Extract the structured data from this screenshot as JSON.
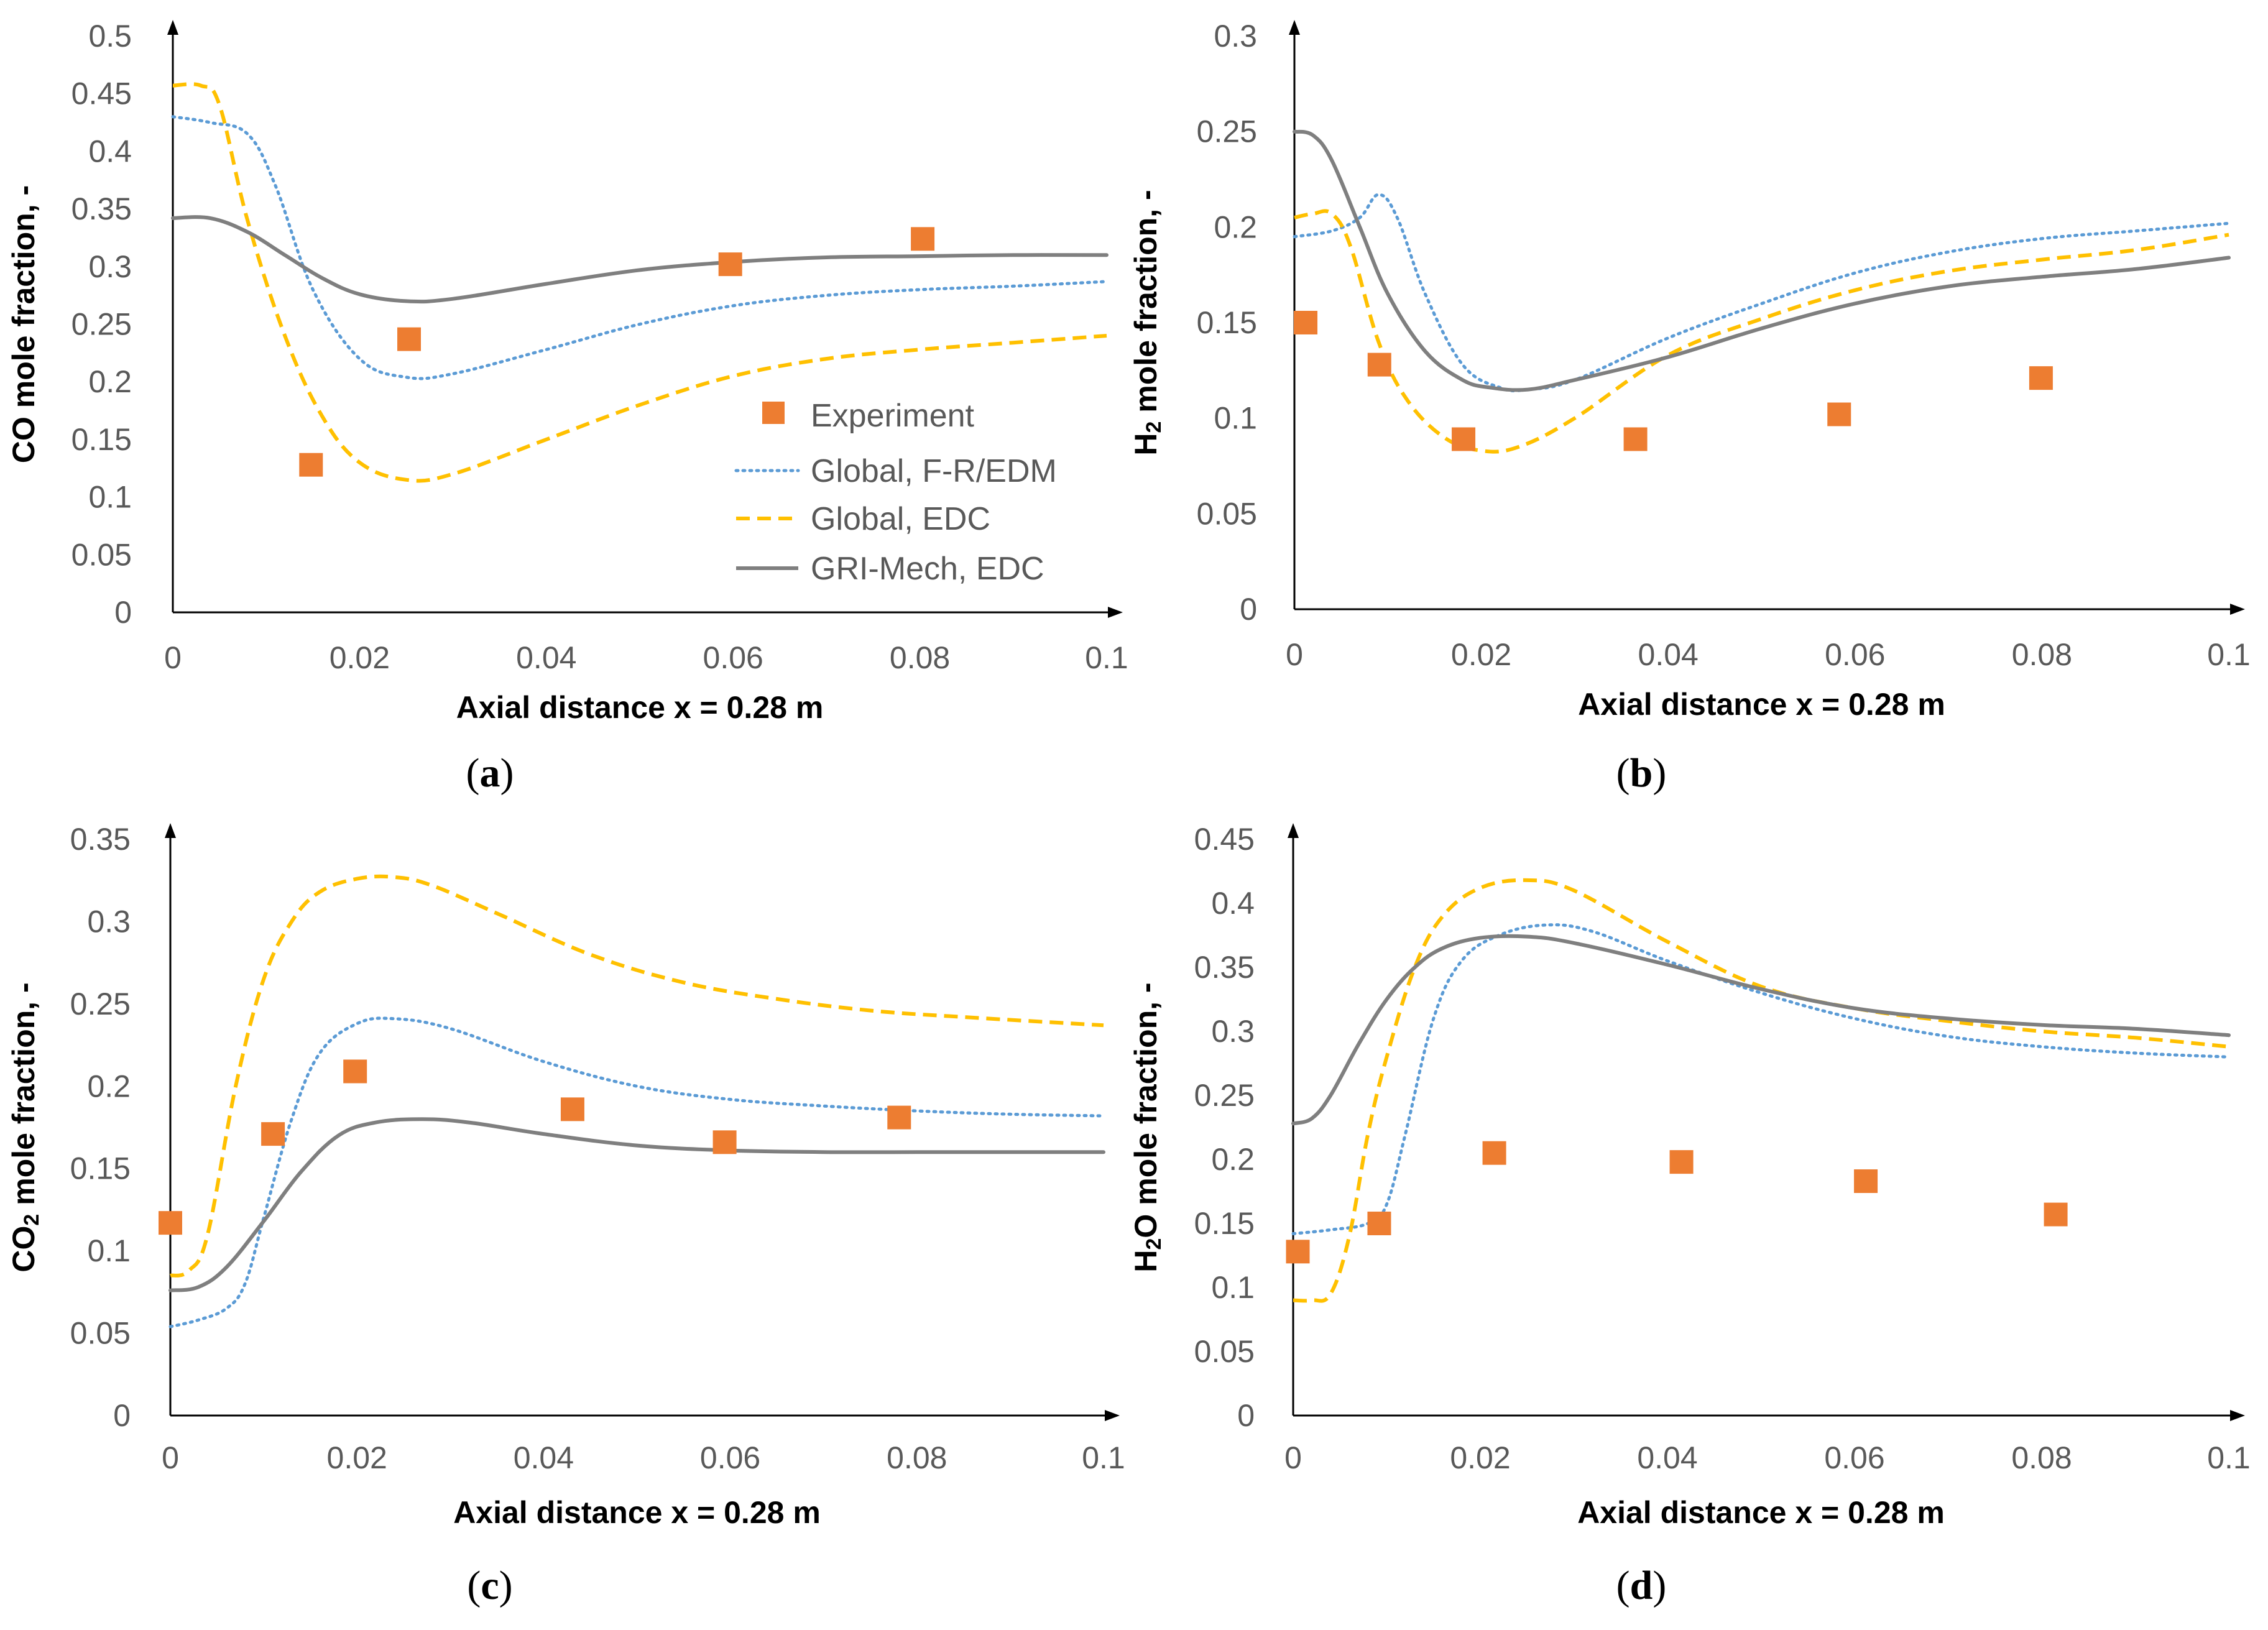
{
  "colors": {
    "experiment": "#ED7D31",
    "global_fr_edm": "#5B9BD5",
    "global_edc": "#FFC000",
    "gri_mech_edc": "#7F7F7F",
    "axis": "#000000",
    "tick_text": "#595959"
  },
  "legend": {
    "experiment": "Experiment",
    "global_fr_edm": "Global, F-R/EDM",
    "global_edc": "Global, EDC",
    "gri_mech_edc": "GRI-Mech, EDC"
  },
  "chart_data": [
    {
      "type": "line",
      "panel": "(a)",
      "panel_letter": "a",
      "xlabel": "Axial distance x = 0.28 m",
      "ylabel": "CO mole fraction, -",
      "xlim": [
        0,
        0.1
      ],
      "ylim": [
        0,
        0.5
      ],
      "xticks": [
        0,
        0.02,
        0.04,
        0.06,
        0.08,
        0.1
      ],
      "xtick_labels": [
        "0",
        "0.02",
        "0.04",
        "0.06",
        "0.08",
        "0.1"
      ],
      "yticks": [
        0,
        0.05,
        0.1,
        0.15,
        0.2,
        0.25,
        0.3,
        0.35,
        0.4,
        0.45,
        0.5
      ],
      "ytick_labels": [
        "0",
        "0.05",
        "0.1",
        "0.15",
        "0.2",
        "0.25",
        "0.3",
        "0.35",
        "0.4",
        "0.45",
        "0.5"
      ],
      "series": [
        {
          "name": "Experiment",
          "kind": "scatter",
          "x": [
            0.0148,
            0.0253,
            0.0597,
            0.0803
          ],
          "y": [
            0.128,
            0.237,
            0.302,
            0.324
          ]
        },
        {
          "name": "Global, F-R/EDM",
          "kind": "line",
          "x": [
            0,
            0.004,
            0.008,
            0.011,
            0.015,
            0.02,
            0.025,
            0.03,
            0.04,
            0.05,
            0.06,
            0.07,
            0.08,
            0.09,
            0.1
          ],
          "y": [
            0.43,
            0.425,
            0.415,
            0.37,
            0.28,
            0.22,
            0.204,
            0.207,
            0.228,
            0.25,
            0.266,
            0.275,
            0.28,
            0.283,
            0.287
          ]
        },
        {
          "name": "Global, EDC",
          "kind": "line",
          "x": [
            0,
            0.003,
            0.005,
            0.008,
            0.012,
            0.016,
            0.02,
            0.025,
            0.03,
            0.04,
            0.05,
            0.06,
            0.07,
            0.08,
            0.09,
            0.1
          ],
          "y": [
            0.457,
            0.457,
            0.44,
            0.34,
            0.24,
            0.17,
            0.13,
            0.115,
            0.12,
            0.15,
            0.18,
            0.205,
            0.22,
            0.228,
            0.234,
            0.24
          ]
        },
        {
          "name": "GRI-Mech, EDC",
          "kind": "line",
          "x": [
            0,
            0.004,
            0.008,
            0.012,
            0.016,
            0.02,
            0.025,
            0.03,
            0.04,
            0.05,
            0.06,
            0.07,
            0.08,
            0.09,
            0.1
          ],
          "y": [
            0.342,
            0.342,
            0.33,
            0.31,
            0.29,
            0.276,
            0.27,
            0.272,
            0.285,
            0.297,
            0.304,
            0.308,
            0.309,
            0.31,
            0.31
          ]
        }
      ],
      "legend_position": "center-right"
    },
    {
      "type": "line",
      "panel": "(b)",
      "panel_letter": "b",
      "xlabel": "Axial distance x = 0.28 m",
      "ylabel": "H2 mole fraction, -",
      "ylabel_parts": [
        "H",
        "2",
        " mole fraction, -"
      ],
      "xlim": [
        0,
        0.1
      ],
      "ylim": [
        0,
        0.3
      ],
      "xticks": [
        0,
        0.02,
        0.04,
        0.06,
        0.08,
        0.1
      ],
      "xtick_labels": [
        "0",
        "0.02",
        "0.04",
        "0.06",
        "0.08",
        "0.1"
      ],
      "yticks": [
        0,
        0.05,
        0.1,
        0.15,
        0.2,
        0.25,
        0.3
      ],
      "ytick_labels": [
        "0",
        "0.05",
        "0.1",
        "0.15",
        "0.2",
        "0.25",
        "0.3"
      ],
      "series": [
        {
          "name": "Experiment",
          "kind": "scatter",
          "x": [
            0.0012,
            0.0091,
            0.0181,
            0.0365,
            0.0583,
            0.0799
          ],
          "y": [
            0.15,
            0.128,
            0.089,
            0.089,
            0.102,
            0.121
          ]
        },
        {
          "name": "Global, F-R/EDM",
          "kind": "line",
          "x": [
            0,
            0.004,
            0.007,
            0.009,
            0.011,
            0.014,
            0.018,
            0.022,
            0.025,
            0.03,
            0.04,
            0.05,
            0.06,
            0.07,
            0.08,
            0.09,
            0.1
          ],
          "y": [
            0.195,
            0.198,
            0.205,
            0.217,
            0.205,
            0.165,
            0.128,
            0.116,
            0.115,
            0.12,
            0.142,
            0.16,
            0.176,
            0.187,
            0.194,
            0.198,
            0.202
          ]
        },
        {
          "name": "Global, EDC",
          "kind": "line",
          "x": [
            0,
            0.002,
            0.004,
            0.006,
            0.009,
            0.012,
            0.016,
            0.02,
            0.024,
            0.03,
            0.04,
            0.05,
            0.06,
            0.07,
            0.08,
            0.09,
            0.1
          ],
          "y": [
            0.205,
            0.207,
            0.207,
            0.19,
            0.14,
            0.11,
            0.09,
            0.083,
            0.085,
            0.1,
            0.133,
            0.152,
            0.167,
            0.177,
            0.183,
            0.188,
            0.196
          ]
        },
        {
          "name": "GRI-Mech, EDC",
          "kind": "line",
          "x": [
            0,
            0.002,
            0.004,
            0.007,
            0.01,
            0.014,
            0.018,
            0.021,
            0.025,
            0.03,
            0.04,
            0.05,
            0.06,
            0.07,
            0.08,
            0.09,
            0.1
          ],
          "y": [
            0.25,
            0.248,
            0.235,
            0.2,
            0.165,
            0.135,
            0.12,
            0.116,
            0.115,
            0.12,
            0.132,
            0.147,
            0.16,
            0.169,
            0.174,
            0.178,
            0.184
          ]
        }
      ]
    },
    {
      "type": "line",
      "panel": "(c)",
      "panel_letter": "c",
      "xlabel": "Axial distance x = 0.28 m",
      "ylabel": "CO2 mole fraction, -",
      "ylabel_parts": [
        "CO",
        "2",
        " mole fraction, -"
      ],
      "xlim": [
        0,
        0.1
      ],
      "ylim": [
        0,
        0.35
      ],
      "xticks": [
        0,
        0.02,
        0.04,
        0.06,
        0.08,
        0.1
      ],
      "xtick_labels": [
        "0",
        "0.02",
        "0.04",
        "0.06",
        "0.08",
        "0.1"
      ],
      "yticks": [
        0,
        0.05,
        0.1,
        0.15,
        0.2,
        0.25,
        0.3,
        0.35
      ],
      "ytick_labels": [
        "0",
        "0.05",
        "0.1",
        "0.15",
        "0.2",
        "0.25",
        "0.3",
        "0.35"
      ],
      "series": [
        {
          "name": "Experiment",
          "kind": "scatter",
          "x": [
            0.0,
            0.011,
            0.0198,
            0.0431,
            0.0594,
            0.0781
          ],
          "y": [
            0.117,
            0.171,
            0.209,
            0.186,
            0.166,
            0.181
          ]
        },
        {
          "name": "Global, F-R/EDM",
          "kind": "line",
          "x": [
            0,
            0.003,
            0.006,
            0.008,
            0.01,
            0.013,
            0.016,
            0.02,
            0.024,
            0.03,
            0.04,
            0.05,
            0.06,
            0.07,
            0.08,
            0.09,
            0.1
          ],
          "y": [
            0.054,
            0.058,
            0.065,
            0.08,
            0.12,
            0.18,
            0.22,
            0.238,
            0.241,
            0.235,
            0.215,
            0.2,
            0.192,
            0.188,
            0.185,
            0.183,
            0.182
          ]
        },
        {
          "name": "Global, EDC",
          "kind": "line",
          "x": [
            0,
            0.002,
            0.004,
            0.007,
            0.01,
            0.013,
            0.016,
            0.02,
            0.024,
            0.028,
            0.035,
            0.045,
            0.055,
            0.065,
            0.075,
            0.085,
            0.1
          ],
          "y": [
            0.085,
            0.088,
            0.11,
            0.2,
            0.265,
            0.3,
            0.318,
            0.326,
            0.327,
            0.322,
            0.305,
            0.28,
            0.263,
            0.253,
            0.246,
            0.242,
            0.237
          ]
        },
        {
          "name": "GRI-Mech, EDC",
          "kind": "line",
          "x": [
            0,
            0.003,
            0.006,
            0.01,
            0.014,
            0.018,
            0.022,
            0.027,
            0.032,
            0.04,
            0.05,
            0.06,
            0.07,
            0.08,
            0.09,
            0.1
          ],
          "y": [
            0.076,
            0.078,
            0.09,
            0.118,
            0.148,
            0.17,
            0.178,
            0.18,
            0.178,
            0.171,
            0.164,
            0.161,
            0.16,
            0.16,
            0.16,
            0.16
          ]
        }
      ]
    },
    {
      "type": "line",
      "panel": "(d)",
      "panel_letter": "d",
      "xlabel": "Axial distance x = 0.28 m",
      "ylabel": "H2O mole fraction, -",
      "ylabel_parts": [
        "H",
        "2",
        "O mole fraction, -"
      ],
      "xlim": [
        0,
        0.1
      ],
      "ylim": [
        0,
        0.45
      ],
      "xticks": [
        0,
        0.02,
        0.04,
        0.06,
        0.08,
        0.1
      ],
      "xtick_labels": [
        "0",
        "0.02",
        "0.04",
        "0.06",
        "0.08",
        "0.1"
      ],
      "yticks": [
        0,
        0.05,
        0.1,
        0.15,
        0.2,
        0.25,
        0.3,
        0.35,
        0.4,
        0.45
      ],
      "ytick_labels": [
        "0",
        "0.05",
        "0.1",
        "0.15",
        "0.2",
        "0.25",
        "0.3",
        "0.35",
        "0.4",
        "0.45"
      ],
      "series": [
        {
          "name": "Experiment",
          "kind": "scatter",
          "x": [
            0.0005,
            0.0092,
            0.0215,
            0.0415,
            0.0612,
            0.0815
          ],
          "y": [
            0.128,
            0.15,
            0.205,
            0.198,
            0.183,
            0.157
          ]
        },
        {
          "name": "Global, F-R/EDM",
          "kind": "line",
          "x": [
            0,
            0.004,
            0.008,
            0.01,
            0.012,
            0.015,
            0.018,
            0.022,
            0.027,
            0.032,
            0.04,
            0.05,
            0.06,
            0.07,
            0.08,
            0.09,
            0.1
          ],
          "y": [
            0.142,
            0.145,
            0.15,
            0.165,
            0.22,
            0.31,
            0.355,
            0.375,
            0.383,
            0.378,
            0.355,
            0.33,
            0.31,
            0.296,
            0.288,
            0.283,
            0.28
          ]
        },
        {
          "name": "Global, EDC",
          "kind": "line",
          "x": [
            0,
            0.002,
            0.004,
            0.006,
            0.008,
            0.01,
            0.013,
            0.016,
            0.02,
            0.025,
            0.03,
            0.04,
            0.05,
            0.06,
            0.07,
            0.08,
            0.09,
            0.1
          ],
          "y": [
            0.09,
            0.09,
            0.095,
            0.14,
            0.22,
            0.28,
            0.35,
            0.39,
            0.412,
            0.418,
            0.41,
            0.37,
            0.335,
            0.318,
            0.308,
            0.3,
            0.295,
            0.288
          ]
        },
        {
          "name": "GRI-Mech, EDC",
          "kind": "line",
          "x": [
            0,
            0.002,
            0.004,
            0.007,
            0.01,
            0.013,
            0.016,
            0.02,
            0.025,
            0.03,
            0.04,
            0.05,
            0.06,
            0.07,
            0.08,
            0.09,
            0.1
          ],
          "y": [
            0.228,
            0.232,
            0.25,
            0.29,
            0.325,
            0.35,
            0.365,
            0.373,
            0.374,
            0.369,
            0.352,
            0.333,
            0.318,
            0.31,
            0.305,
            0.302,
            0.297
          ]
        }
      ]
    }
  ]
}
